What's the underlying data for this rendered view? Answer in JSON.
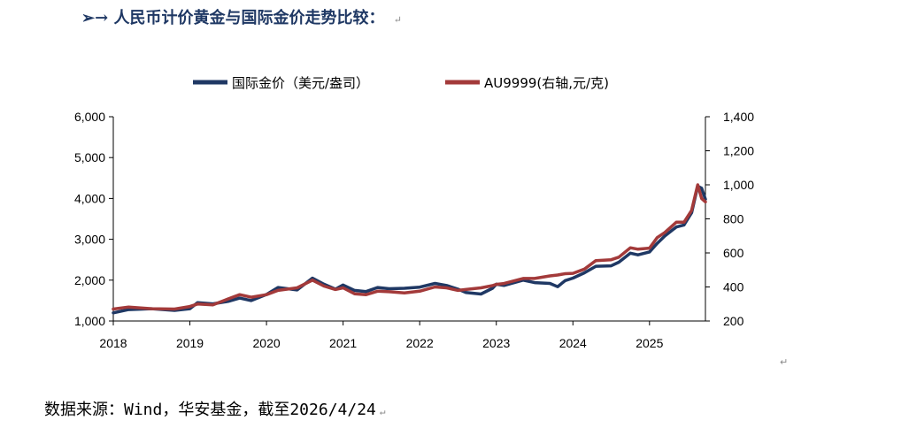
{
  "heading": {
    "prefix": "➢→",
    "text": "人民币计价黄金与国际金价走势比较：",
    "mark": "↵"
  },
  "source": {
    "text": "数据来源：Wind，华安基金，截至2026/4/24",
    "mark": "↵"
  },
  "stray_mark": "↵",
  "colors": {
    "intl_gold": "#1f3864",
    "au9999": "#a33a3a",
    "axis": "#000000"
  },
  "chart_data": {
    "type": "line",
    "left_axis": {
      "ylim": [
        1000,
        6000
      ],
      "ticks": [
        "1,000",
        "2,000",
        "3,000",
        "4,000",
        "5,000",
        "6,000"
      ]
    },
    "right_axis": {
      "ylim": [
        200,
        1400
      ],
      "ticks": [
        "200",
        "400",
        "600",
        "800",
        "1,000",
        "1,200",
        "1,400"
      ]
    },
    "x_axis": {
      "xlim": [
        2018,
        2025.73
      ],
      "ticks": [
        "2018",
        "2019",
        "2020",
        "2021",
        "2022",
        "2023",
        "2024",
        "2025"
      ]
    },
    "series": [
      {
        "name": "国际金价（美元/盎司）",
        "axis": "left",
        "points": [
          [
            2018.0,
            1200
          ],
          [
            2018.2,
            1280
          ],
          [
            2018.5,
            1300
          ],
          [
            2018.8,
            1260
          ],
          [
            2019.0,
            1300
          ],
          [
            2019.1,
            1450
          ],
          [
            2019.3,
            1420
          ],
          [
            2019.5,
            1480
          ],
          [
            2019.65,
            1560
          ],
          [
            2019.8,
            1500
          ],
          [
            2020.0,
            1650
          ],
          [
            2020.15,
            1820
          ],
          [
            2020.4,
            1760
          ],
          [
            2020.6,
            2050
          ],
          [
            2020.75,
            1900
          ],
          [
            2020.9,
            1780
          ],
          [
            2021.0,
            1880
          ],
          [
            2021.15,
            1750
          ],
          [
            2021.3,
            1720
          ],
          [
            2021.45,
            1820
          ],
          [
            2021.6,
            1790
          ],
          [
            2021.8,
            1800
          ],
          [
            2022.0,
            1830
          ],
          [
            2022.2,
            1920
          ],
          [
            2022.35,
            1870
          ],
          [
            2022.5,
            1780
          ],
          [
            2022.6,
            1700
          ],
          [
            2022.8,
            1660
          ],
          [
            2022.95,
            1800
          ],
          [
            2023.0,
            1900
          ],
          [
            2023.1,
            1870
          ],
          [
            2023.35,
            2000
          ],
          [
            2023.5,
            1940
          ],
          [
            2023.7,
            1920
          ],
          [
            2023.8,
            1840
          ],
          [
            2023.9,
            1990
          ],
          [
            2024.0,
            2050
          ],
          [
            2024.15,
            2180
          ],
          [
            2024.3,
            2340
          ],
          [
            2024.5,
            2350
          ],
          [
            2024.6,
            2440
          ],
          [
            2024.75,
            2660
          ],
          [
            2024.85,
            2620
          ],
          [
            2025.0,
            2690
          ],
          [
            2025.1,
            2900
          ],
          [
            2025.2,
            3080
          ],
          [
            2025.35,
            3300
          ],
          [
            2025.45,
            3350
          ],
          [
            2025.55,
            3650
          ],
          [
            2025.63,
            4300
          ],
          [
            2025.68,
            4250
          ],
          [
            2025.73,
            3980
          ]
        ]
      },
      {
        "name": "AU9999(右轴,元/克)",
        "axis": "right",
        "points": [
          [
            2018.0,
            270
          ],
          [
            2018.2,
            282
          ],
          [
            2018.5,
            272
          ],
          [
            2018.8,
            270
          ],
          [
            2019.0,
            285
          ],
          [
            2019.1,
            300
          ],
          [
            2019.3,
            295
          ],
          [
            2019.5,
            330
          ],
          [
            2019.65,
            355
          ],
          [
            2019.8,
            340
          ],
          [
            2020.0,
            355
          ],
          [
            2020.15,
            380
          ],
          [
            2020.4,
            395
          ],
          [
            2020.6,
            440
          ],
          [
            2020.75,
            405
          ],
          [
            2020.9,
            385
          ],
          [
            2021.0,
            395
          ],
          [
            2021.15,
            360
          ],
          [
            2021.3,
            355
          ],
          [
            2021.45,
            375
          ],
          [
            2021.6,
            372
          ],
          [
            2021.8,
            365
          ],
          [
            2022.0,
            375
          ],
          [
            2022.2,
            400
          ],
          [
            2022.35,
            395
          ],
          [
            2022.5,
            380
          ],
          [
            2022.6,
            385
          ],
          [
            2022.8,
            395
          ],
          [
            2022.95,
            408
          ],
          [
            2023.0,
            415
          ],
          [
            2023.1,
            420
          ],
          [
            2023.35,
            450
          ],
          [
            2023.5,
            450
          ],
          [
            2023.7,
            465
          ],
          [
            2023.8,
            470
          ],
          [
            2023.9,
            478
          ],
          [
            2024.0,
            480
          ],
          [
            2024.15,
            505
          ],
          [
            2024.3,
            555
          ],
          [
            2024.5,
            560
          ],
          [
            2024.6,
            575
          ],
          [
            2024.75,
            630
          ],
          [
            2024.85,
            622
          ],
          [
            2025.0,
            628
          ],
          [
            2025.1,
            690
          ],
          [
            2025.2,
            720
          ],
          [
            2025.35,
            780
          ],
          [
            2025.45,
            780
          ],
          [
            2025.55,
            850
          ],
          [
            2025.63,
            1000
          ],
          [
            2025.68,
            920
          ],
          [
            2025.73,
            900
          ]
        ]
      }
    ]
  }
}
